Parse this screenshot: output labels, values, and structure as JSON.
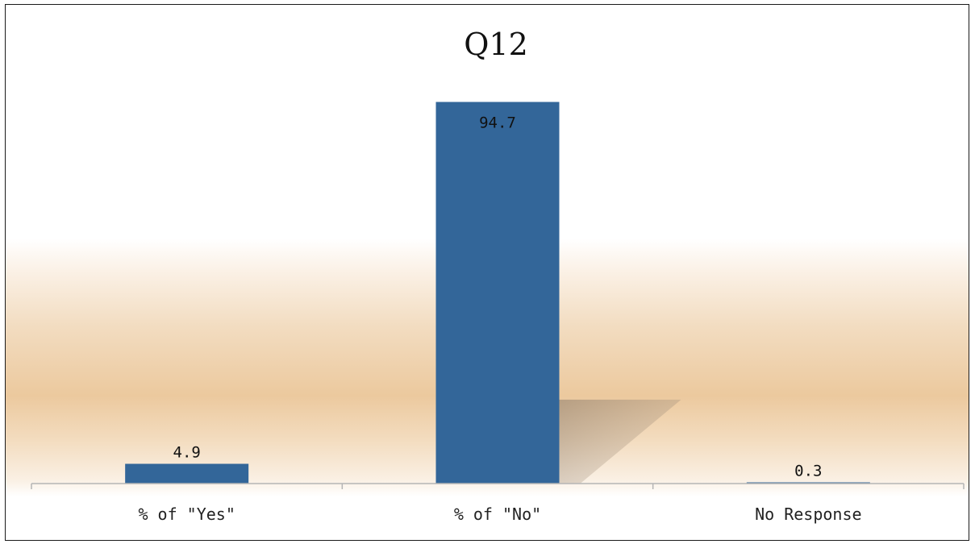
{
  "chart_data": {
    "type": "bar",
    "title": "Q12",
    "categories": [
      "% of \"Yes\"",
      "% of \"No\"",
      "No Response"
    ],
    "values": [
      4.9,
      94.7,
      0.3
    ],
    "value_labels": [
      "4.9",
      "94.7",
      "0.3"
    ],
    "xlabel": "",
    "ylabel": "",
    "ylim": [
      0,
      100
    ],
    "grid": false,
    "legend": "none",
    "bar_color": "#336699"
  }
}
